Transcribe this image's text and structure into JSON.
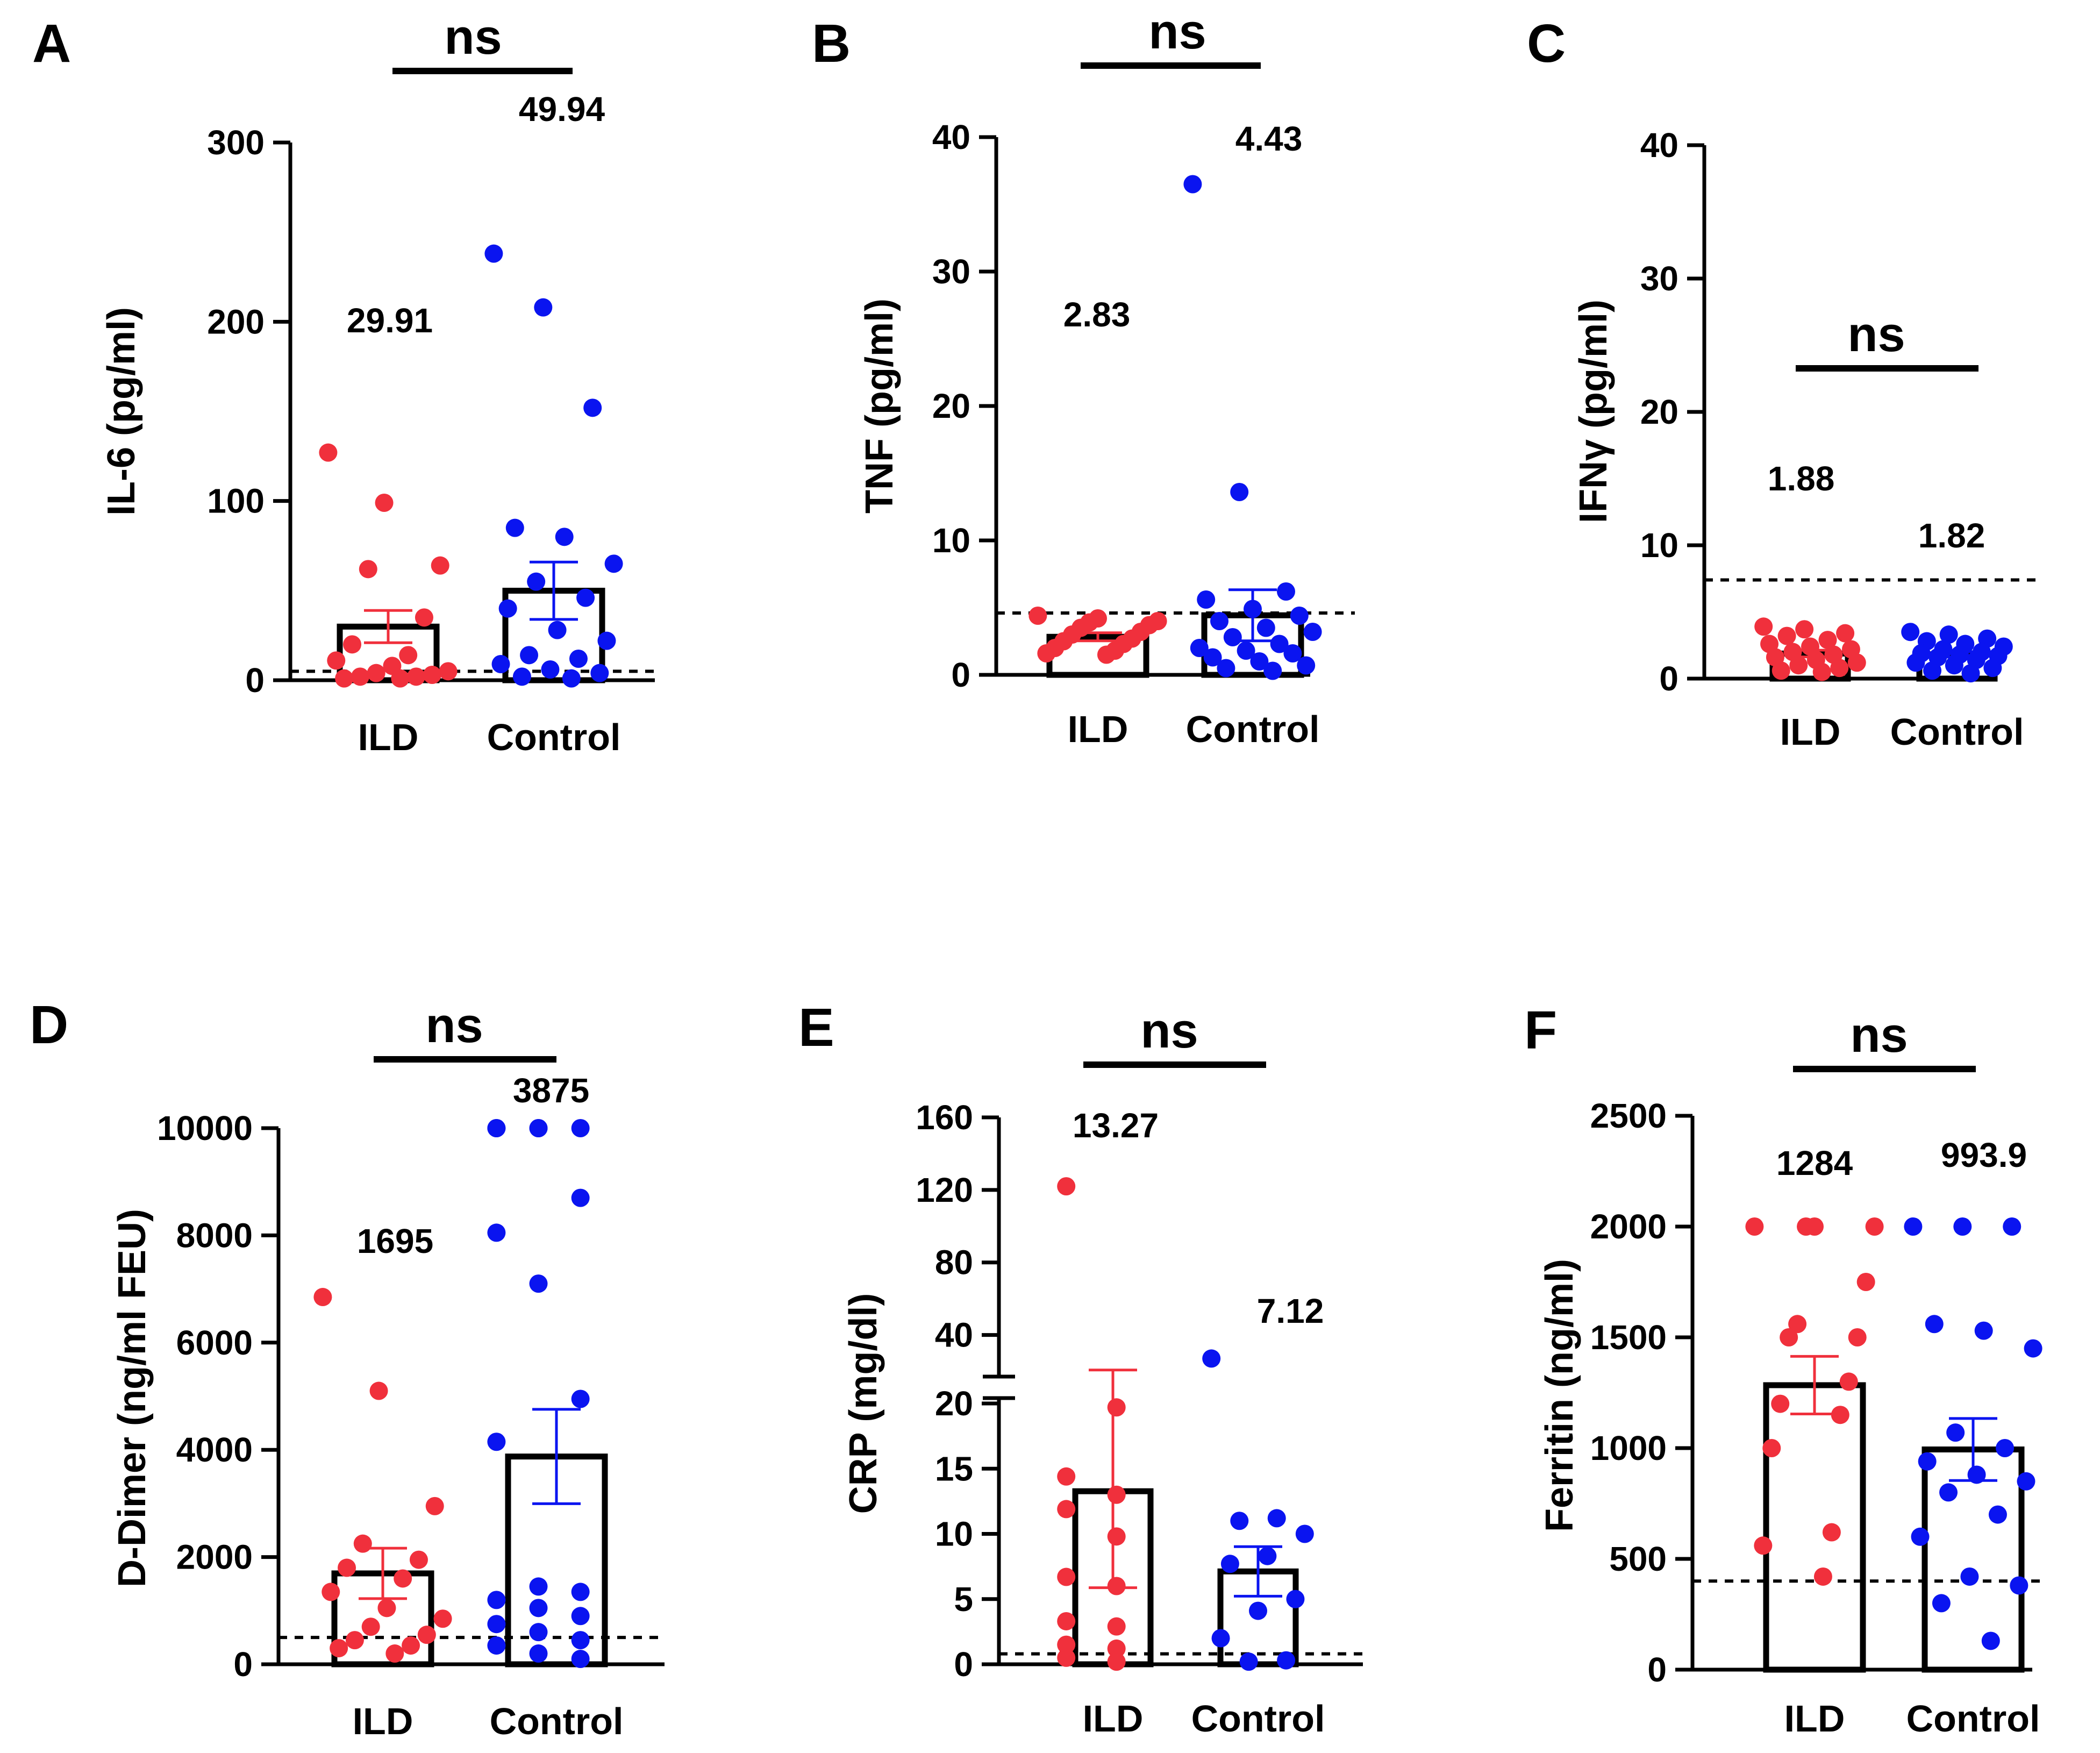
{
  "colors": {
    "ild": "#f0303c",
    "control": "#0a14f0",
    "axis": "#000000"
  },
  "chart_data": [
    {
      "type": "bar",
      "panel": "A",
      "title": "",
      "ylabel": "IL-6 (pg/ml)",
      "categories": [
        "ILD",
        "Control"
      ],
      "ylim": [
        0,
        300
      ],
      "yticks": [
        0,
        100,
        200,
        300
      ],
      "dashed_line": 5,
      "significance": "ns",
      "series": [
        {
          "name": "ILD",
          "mean": 29.91,
          "mean_label": "29.91",
          "sem": 9,
          "points": [
            127,
            99,
            64,
            62,
            35,
            20,
            14,
            11,
            8,
            5,
            4,
            3,
            2,
            2,
            1,
            1
          ]
        },
        {
          "name": "Control",
          "mean": 49.94,
          "mean_label": "49.94",
          "sem": 16,
          "points": [
            238,
            208,
            152,
            85,
            80,
            65,
            55,
            46,
            40,
            28,
            22,
            14,
            12,
            9,
            6,
            4,
            2,
            1
          ]
        }
      ]
    },
    {
      "type": "bar",
      "panel": "B",
      "title": "",
      "ylabel": "TNF (pg/ml)",
      "categories": [
        "ILD",
        "Control"
      ],
      "ylim": [
        0,
        40
      ],
      "yticks": [
        0,
        10,
        20,
        30,
        40
      ],
      "dashed_line": 4.6,
      "significance": "ns",
      "series": [
        {
          "name": "ILD",
          "mean": 2.83,
          "mean_label": "2.83",
          "sem": 0.3,
          "points": [
            4.4,
            4.2,
            4.0,
            3.9,
            3.7,
            3.5,
            3.2,
            3.0,
            2.7,
            2.5,
            2.3,
            2.0,
            1.8,
            1.6,
            1.5
          ]
        },
        {
          "name": "Control",
          "mean": 4.43,
          "mean_label": "4.43",
          "sem": 1.9,
          "points": [
            36.5,
            13.6,
            6.2,
            5.6,
            4.9,
            4.4,
            4.0,
            3.5,
            3.2,
            2.8,
            2.3,
            2.0,
            1.8,
            1.6,
            1.3,
            1.0,
            0.7,
            0.5,
            0.3
          ]
        }
      ]
    },
    {
      "type": "bar",
      "panel": "C",
      "title": "",
      "ylabel": "IFNγ (pg/ml)",
      "categories": [
        "ILD",
        "Control"
      ],
      "ylim": [
        0,
        40
      ],
      "yticks": [
        0,
        10,
        20,
        30,
        40
      ],
      "dashed_line": 7.4,
      "significance": "ns",
      "series": [
        {
          "name": "ILD",
          "mean": 1.88,
          "mean_label": "1.88",
          "sem": 0.25,
          "points": [
            3.9,
            3.7,
            3.4,
            3.2,
            2.9,
            2.6,
            2.4,
            2.2,
            2.0,
            1.8,
            1.6,
            1.4,
            1.2,
            1.0,
            0.8,
            0.6,
            0.5
          ]
        },
        {
          "name": "Control",
          "mean": 1.82,
          "mean_label": "1.82",
          "sem": 0.2,
          "points": [
            3.5,
            3.3,
            3.0,
            2.8,
            2.6,
            2.4,
            2.2,
            2.0,
            1.9,
            1.8,
            1.7,
            1.6,
            1.4,
            1.2,
            1.0,
            0.8,
            0.6,
            0.4
          ]
        }
      ]
    },
    {
      "type": "bar",
      "panel": "D",
      "title": "",
      "ylabel": "D-Dimer (ng/ml FEU)",
      "categories": [
        "ILD",
        "Control"
      ],
      "ylim": [
        0,
        10000
      ],
      "yticks": [
        0,
        2000,
        4000,
        6000,
        8000,
        10000
      ],
      "dashed_line": 500,
      "significance": "ns",
      "series": [
        {
          "name": "ILD",
          "mean": 1695,
          "mean_label": "1695",
          "sem": 470,
          "points": [
            6850,
            5100,
            2950,
            2250,
            1950,
            1800,
            1600,
            1350,
            1050,
            850,
            700,
            550,
            450,
            350,
            300,
            200
          ]
        },
        {
          "name": "Control",
          "mean": 3875,
          "mean_label": "3875",
          "sem": 880,
          "points": [
            10000,
            10000,
            10000,
            10000,
            10000,
            8700,
            8050,
            7100,
            4950,
            4150,
            1450,
            1350,
            1200,
            1050,
            900,
            750,
            600,
            450,
            350,
            200,
            100
          ]
        }
      ]
    },
    {
      "type": "bar",
      "panel": "E",
      "title": "",
      "ylabel": "CRP (mg/dl)",
      "categories": [
        "ILD",
        "Control"
      ],
      "axis_break": true,
      "ylim_lower": [
        0,
        20
      ],
      "yticks_lower": [
        0,
        5,
        10,
        15,
        20
      ],
      "ylim_upper": [
        20,
        160
      ],
      "yticks_upper": [
        40,
        80,
        120,
        160
      ],
      "dashed_line": 0.8,
      "significance": "ns",
      "series": [
        {
          "name": "ILD",
          "mean": 13.27,
          "mean_label": "13.27",
          "sem": 7.4,
          "points": [
            122,
            19.7,
            14.4,
            13.0,
            11.9,
            9.8,
            6.7,
            6.0,
            3.3,
            2.9,
            1.5,
            1.2,
            0.5,
            0.2
          ]
        },
        {
          "name": "Control",
          "mean": 7.12,
          "mean_label": "7.12",
          "sem": 1.9,
          "points": [
            27,
            11.2,
            11.0,
            10.0,
            8.3,
            7.7,
            5.0,
            4.1,
            2.0,
            0.3,
            0.2
          ]
        }
      ]
    },
    {
      "type": "bar",
      "panel": "F",
      "title": "",
      "ylabel": "Ferritin (ng/ml)",
      "categories": [
        "ILD",
        "Control"
      ],
      "ylim": [
        0,
        2500
      ],
      "yticks": [
        0,
        500,
        1000,
        1500,
        2000,
        2500
      ],
      "dashed_line": 400,
      "significance": "ns",
      "series": [
        {
          "name": "ILD",
          "mean": 1284,
          "mean_label": "1284",
          "sem": 130,
          "points": [
            2000,
            2000,
            2000,
            2000,
            1750,
            1560,
            1500,
            1500,
            1300,
            1200,
            1150,
            1000,
            620,
            560,
            420
          ]
        },
        {
          "name": "Control",
          "mean": 993.9,
          "mean_label": "993.9",
          "sem": 140,
          "points": [
            2000,
            2000,
            2000,
            1560,
            1530,
            1450,
            1070,
            1000,
            940,
            880,
            850,
            800,
            700,
            600,
            420,
            380,
            300,
            130
          ]
        }
      ]
    }
  ]
}
